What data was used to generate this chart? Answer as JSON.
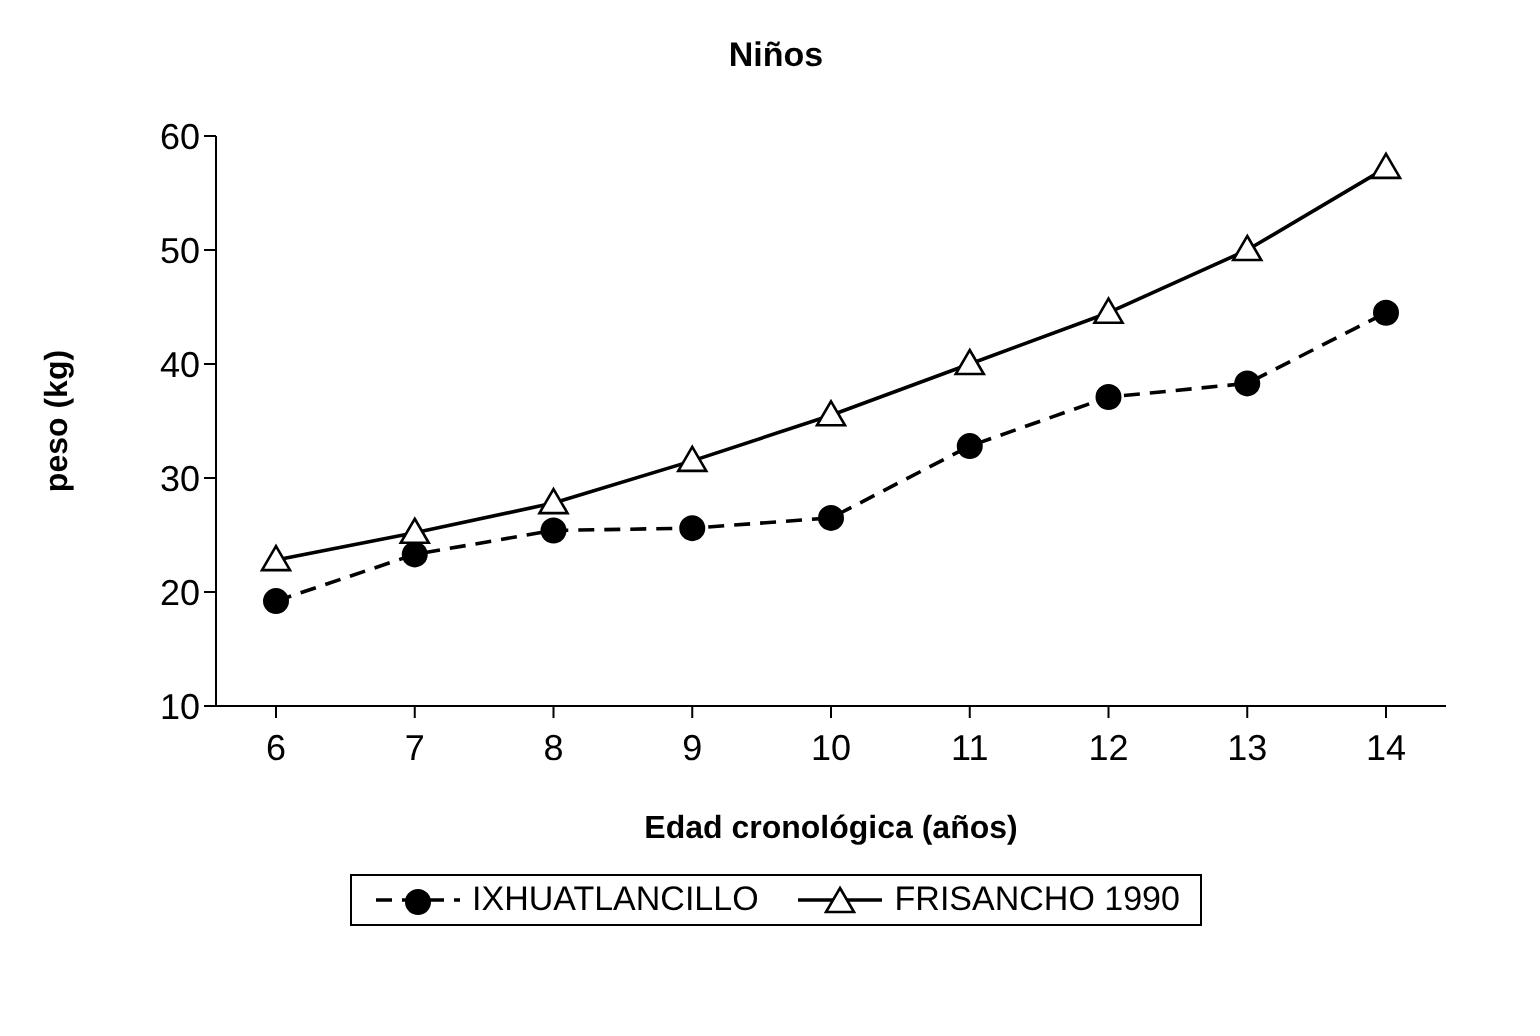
{
  "chart_data": {
    "type": "line",
    "title": "Niños",
    "xlabel": "Edad cronológica (años)",
    "ylabel": "peso (kg)",
    "categories": [
      "6",
      "7",
      "8",
      "9",
      "10",
      "11",
      "12",
      "13",
      "14"
    ],
    "series": [
      {
        "name": "IXHUATLANCILLO",
        "color": "#000000",
        "marker": "circle",
        "line_style": "dashed",
        "values": [
          19.2,
          23.3,
          25.4,
          25.6,
          26.5,
          32.8,
          37.1,
          38.3,
          44.5
        ]
      },
      {
        "name": "FRISANCHO 1990",
        "color": "#000000",
        "marker": "triangle",
        "line_style": "solid",
        "values": [
          22.8,
          25.2,
          27.8,
          31.5,
          35.5,
          40.0,
          44.5,
          50.0,
          57.2
        ]
      }
    ],
    "ylim": [
      10,
      60
    ],
    "yticks": [
      10,
      20,
      30,
      40,
      50,
      60
    ],
    "legend": "bottom"
  }
}
